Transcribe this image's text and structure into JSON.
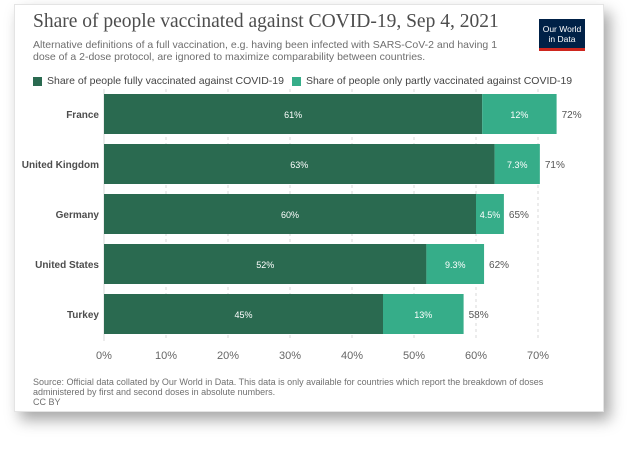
{
  "title": "Share of people vaccinated against COVID-19, Sep 4, 2021",
  "subtitle": "Alternative definitions of a full vaccination, e.g. having been infected with SARS-CoV-2 and having 1 dose of a 2-dose protocol, are ignored to maximize comparability between countries.",
  "logo": {
    "line1": "Our World",
    "line2": "in Data"
  },
  "source": "Source: Official data collated by Our World in Data. This data is only available for countries which report the breakdown of doses administered by first and second doses in absolute numbers.",
  "license": "CC BY",
  "colors": {
    "full": "#2a6a50",
    "partial": "#36ad89",
    "text": "#4d4d4d",
    "grid": "#d8d8d8"
  },
  "chart_data": {
    "type": "bar",
    "orientation": "horizontal",
    "stacked": true,
    "categories": [
      "France",
      "United Kingdom",
      "Germany",
      "United States",
      "Turkey"
    ],
    "series": [
      {
        "name": "Share of people fully vaccinated against COVID-19",
        "values": [
          61,
          63,
          60,
          52,
          45
        ],
        "labels": [
          "61%",
          "63%",
          "60%",
          "52%",
          "45%"
        ]
      },
      {
        "name": "Share of people only partly vaccinated against COVID-19",
        "values": [
          12,
          7.3,
          4.5,
          9.3,
          13
        ],
        "labels": [
          "12%",
          "7.3%",
          "4.5%",
          "9.3%",
          "13%"
        ]
      }
    ],
    "totals": [
      "72%",
      "71%",
      "65%",
      "62%",
      "58%"
    ],
    "xlim": [
      0,
      70
    ],
    "xticks": [
      0,
      10,
      20,
      30,
      40,
      50,
      60,
      70
    ],
    "xtick_labels": [
      "0%",
      "10%",
      "20%",
      "30%",
      "40%",
      "50%",
      "60%",
      "70%"
    ],
    "grid": true,
    "legend_position": "top-left"
  }
}
